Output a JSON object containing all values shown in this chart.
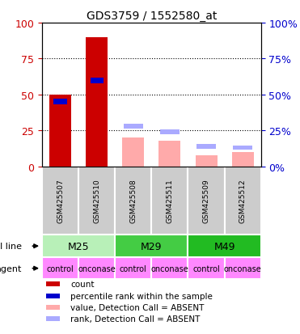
{
  "title": "GDS3759 / 1552580_at",
  "samples": [
    "GSM425507",
    "GSM425510",
    "GSM425508",
    "GSM425511",
    "GSM425509",
    "GSM425512"
  ],
  "count_values": [
    50,
    90,
    0,
    0,
    0,
    0
  ],
  "rank_values": [
    45,
    60,
    0,
    0,
    0,
    0
  ],
  "absent_value": [
    0,
    0,
    20,
    18,
    8,
    10
  ],
  "absent_rank": [
    0,
    0,
    28,
    24,
    14,
    13
  ],
  "count_present": [
    true,
    true,
    false,
    false,
    false,
    false
  ],
  "rank_present": [
    true,
    true,
    false,
    false,
    false,
    false
  ],
  "ylim": [
    0,
    100
  ],
  "yticks": [
    0,
    25,
    50,
    75,
    100
  ],
  "agents": [
    "control",
    "onconase",
    "control",
    "onconase",
    "control",
    "onconase"
  ],
  "agent_color": "#ff88ff",
  "bar_width": 0.4,
  "count_color": "#cc0000",
  "rank_color": "#0000cc",
  "absent_val_color": "#ffaaaa",
  "absent_rank_color": "#aaaaff",
  "bg_color": "#ffffff",
  "left_tick_color": "#cc0000",
  "right_tick_color": "#0000cc",
  "cell_line_info": [
    {
      "start": 0,
      "end": 2,
      "label": "M25",
      "color": "#b8f0b8"
    },
    {
      "start": 2,
      "end": 4,
      "label": "M29",
      "color": "#44cc44"
    },
    {
      "start": 4,
      "end": 6,
      "label": "M49",
      "color": "#22bb22"
    }
  ],
  "legend_items": [
    {
      "color": "#cc0000",
      "label": "count"
    },
    {
      "color": "#0000cc",
      "label": "percentile rank within the sample"
    },
    {
      "color": "#ffaaaa",
      "label": "value, Detection Call = ABSENT"
    },
    {
      "color": "#aaaaff",
      "label": "rank, Detection Call = ABSENT"
    }
  ]
}
